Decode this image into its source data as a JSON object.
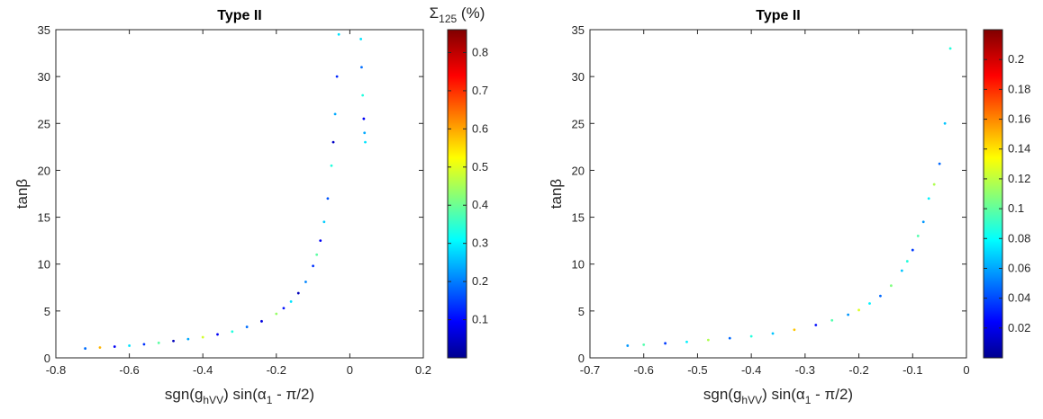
{
  "chart_data": [
    {
      "type": "scatter",
      "title": "Type II",
      "xlabel_parts": [
        {
          "text": "sgn(g"
        },
        {
          "text": "hVV",
          "sub": true
        },
        {
          "text": ") sin(α"
        },
        {
          "text": "1",
          "sub": true
        },
        {
          "text": " - π/2)"
        }
      ],
      "ylabel": "tanβ",
      "colorbar_label_parts": [
        {
          "text": "Σ"
        },
        {
          "text": "125",
          "sub": true
        },
        {
          "text": " (%)"
        }
      ],
      "colorscale": "jet",
      "xlim": [
        -0.8,
        0.2
      ],
      "xticks": [
        -0.8,
        -0.6,
        -0.4,
        -0.2,
        0,
        0.2
      ],
      "ylim": [
        0,
        35
      ],
      "yticks": [
        0,
        5,
        10,
        15,
        20,
        25,
        30,
        35
      ],
      "clim": [
        0,
        0.86
      ],
      "cticks": [
        0.1,
        0.2,
        0.3,
        0.4,
        0.5,
        0.6,
        0.7,
        0.8
      ],
      "x": [
        -0.72,
        -0.68,
        -0.64,
        -0.6,
        -0.56,
        -0.52,
        -0.48,
        -0.44,
        -0.4,
        -0.36,
        -0.32,
        -0.28,
        -0.24,
        -0.2,
        -0.18,
        -0.16,
        -0.14,
        -0.12,
        -0.1,
        -0.09,
        -0.08,
        -0.07,
        -0.06,
        -0.05,
        -0.045,
        -0.04,
        -0.035,
        -0.03,
        0.03,
        0.032,
        0.035,
        0.038,
        0.04,
        0.042
      ],
      "y": [
        1.0,
        1.1,
        1.2,
        1.3,
        1.45,
        1.6,
        1.8,
        2.0,
        2.2,
        2.5,
        2.8,
        3.3,
        3.9,
        4.7,
        5.3,
        6.0,
        6.9,
        8.1,
        9.8,
        11,
        12.5,
        14.5,
        17,
        20.5,
        23,
        26,
        30,
        34.5,
        34,
        31,
        28,
        25.5,
        24,
        23
      ],
      "c": [
        0.2,
        0.6,
        0.1,
        0.3,
        0.15,
        0.4,
        0.05,
        0.25,
        0.5,
        0.1,
        0.35,
        0.2,
        0.08,
        0.45,
        0.12,
        0.3,
        0.05,
        0.22,
        0.15,
        0.4,
        0.1,
        0.28,
        0.18,
        0.35,
        0.06,
        0.25,
        0.14,
        0.3,
        0.3,
        0.2,
        0.35,
        0.1,
        0.25,
        0.3
      ]
    },
    {
      "type": "scatter",
      "title": "Type II",
      "xlabel_parts": [
        {
          "text": "sgn(g"
        },
        {
          "text": "hVV",
          "sub": true
        },
        {
          "text": ") sin(α"
        },
        {
          "text": "1",
          "sub": true
        },
        {
          "text": " - π/2)"
        }
      ],
      "ylabel": "tanβ",
      "colorscale": "jet",
      "xlim": [
        -0.7,
        0
      ],
      "xticks": [
        -0.7,
        -0.6,
        -0.5,
        -0.4,
        -0.3,
        -0.2,
        -0.1,
        0
      ],
      "ylim": [
        0,
        35
      ],
      "yticks": [
        0,
        5,
        10,
        15,
        20,
        25,
        30,
        35
      ],
      "clim": [
        0,
        0.22
      ],
      "cticks": [
        0.02,
        0.04,
        0.06,
        0.08,
        0.1,
        0.12,
        0.14,
        0.16,
        0.18,
        0.2
      ],
      "x": [
        -0.63,
        -0.6,
        -0.56,
        -0.52,
        -0.48,
        -0.44,
        -0.4,
        -0.36,
        -0.32,
        -0.28,
        -0.25,
        -0.22,
        -0.2,
        -0.18,
        -0.16,
        -0.14,
        -0.12,
        -0.11,
        -0.1,
        -0.09,
        -0.08,
        -0.07,
        -0.06,
        -0.05,
        -0.04,
        -0.03
      ],
      "y": [
        1.3,
        1.4,
        1.55,
        1.7,
        1.9,
        2.1,
        2.3,
        2.6,
        3.0,
        3.5,
        4.0,
        4.6,
        5.1,
        5.8,
        6.6,
        7.7,
        9.3,
        10.3,
        11.5,
        13,
        14.5,
        17,
        18.5,
        20.7,
        25,
        33
      ],
      "c": [
        0.06,
        0.1,
        0.04,
        0.08,
        0.12,
        0.05,
        0.09,
        0.07,
        0.15,
        0.03,
        0.1,
        0.06,
        0.13,
        0.08,
        0.05,
        0.11,
        0.07,
        0.09,
        0.04,
        0.1,
        0.06,
        0.08,
        0.12,
        0.05,
        0.07,
        0.09
      ]
    }
  ]
}
